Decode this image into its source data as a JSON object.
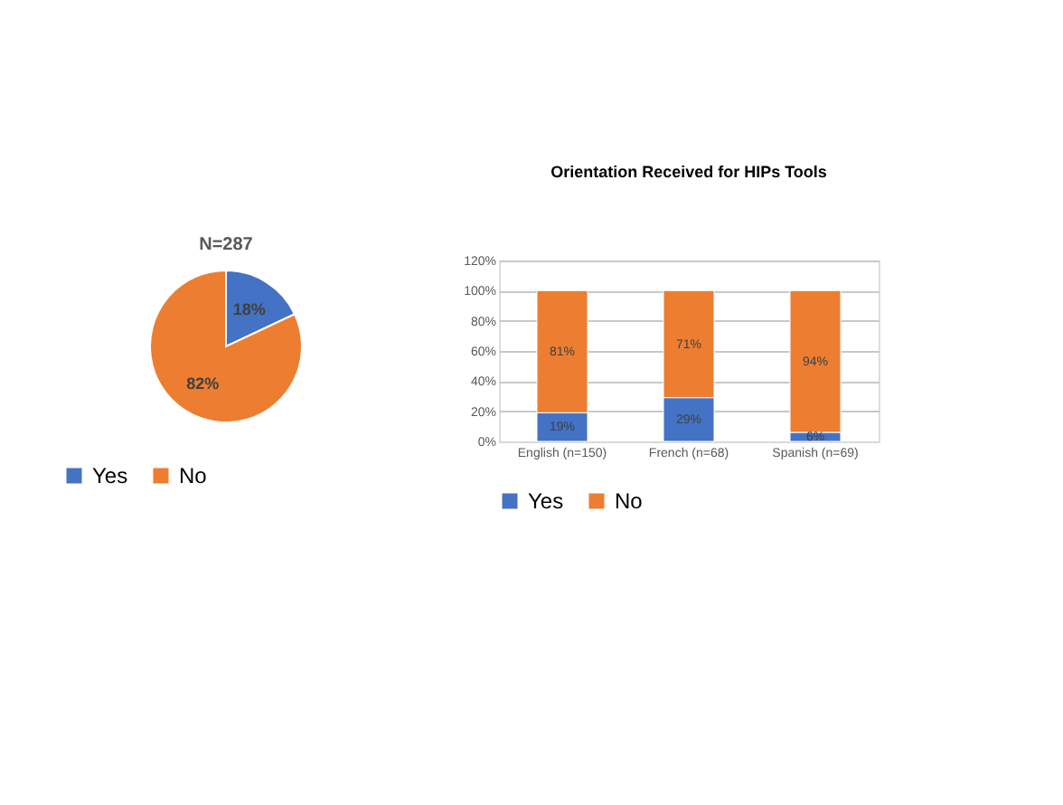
{
  "chart_data": [
    {
      "type": "pie",
      "title": "N=287",
      "categories": [
        "Yes",
        "No"
      ],
      "values": [
        18,
        82
      ],
      "colors": [
        "#4472c4",
        "#ed7d31"
      ],
      "value_labels": [
        "18%",
        "82%"
      ],
      "legend": "bottom"
    },
    {
      "type": "bar",
      "title": "Orientation Received for HIPs Tools",
      "categories": [
        "English (n=150)",
        "French (n=68)",
        "Spanish (n=69)"
      ],
      "stacked": true,
      "series": [
        {
          "name": "Yes",
          "color": "#4472c4",
          "values": [
            19,
            29,
            6
          ],
          "value_labels": [
            "19%",
            "29%",
            "6%"
          ]
        },
        {
          "name": "No",
          "color": "#ed7d31",
          "values": [
            81,
            71,
            94
          ],
          "value_labels": [
            "81%",
            "71%",
            "94%"
          ]
        }
      ],
      "ylim": [
        0,
        120
      ],
      "yticks": [
        {
          "value": 0,
          "label": "0%"
        },
        {
          "value": 20,
          "label": "20%"
        },
        {
          "value": 40,
          "label": "40%"
        },
        {
          "value": 60,
          "label": "60%"
        },
        {
          "value": 80,
          "label": "80%"
        },
        {
          "value": 100,
          "label": "100%"
        },
        {
          "value": 120,
          "label": "120%"
        }
      ],
      "grid": "y",
      "legend": "bottom"
    }
  ]
}
